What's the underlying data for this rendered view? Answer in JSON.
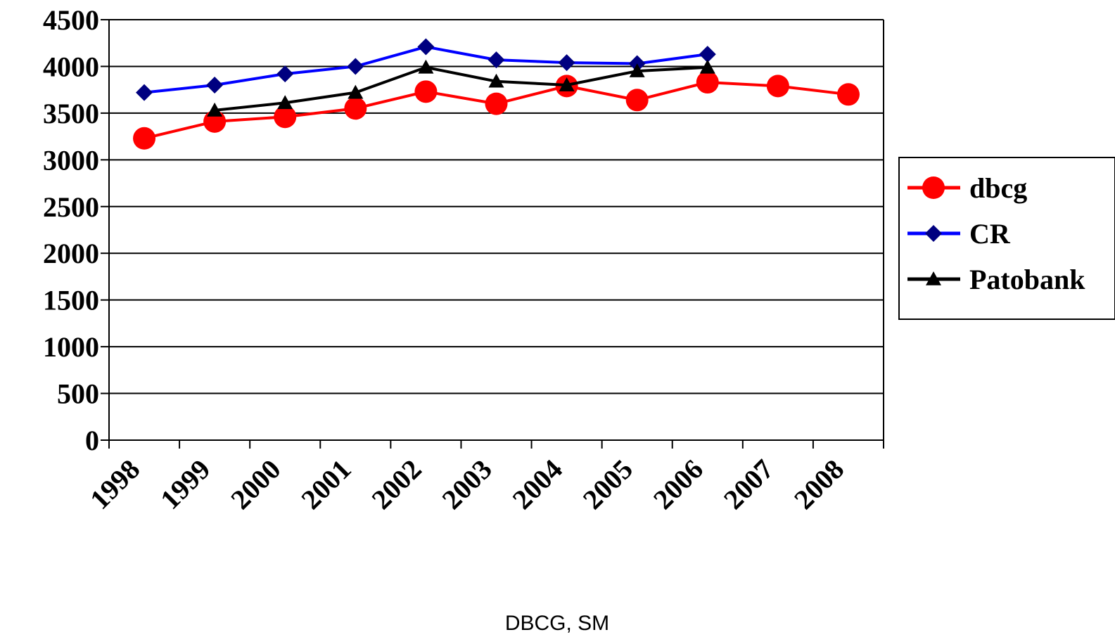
{
  "chart_data": {
    "type": "line",
    "categories": [
      "1998",
      "1999",
      "2000",
      "2001",
      "2002",
      "2003",
      "2004",
      "2005",
      "2006",
      "2007",
      "2008"
    ],
    "ylim": [
      0,
      4500
    ],
    "yticks": [
      "0",
      "500",
      "1000",
      "1500",
      "2000",
      "2500",
      "3000",
      "3500",
      "4000",
      "4500"
    ],
    "grid": true,
    "legend_position": "right",
    "series": [
      {
        "name": "dbcg",
        "color": "#ff0000",
        "marker": "circle",
        "values": [
          3230,
          3410,
          3460,
          3550,
          3730,
          3600,
          3790,
          3640,
          3830,
          3790,
          3700
        ]
      },
      {
        "name": "CR",
        "color": "#0000ff",
        "marker": "diamond",
        "values": [
          3720,
          3800,
          3920,
          4000,
          4210,
          4070,
          4040,
          4030,
          4130,
          null,
          null
        ]
      },
      {
        "name": "Patobank",
        "color": "#000000",
        "marker": "triangle",
        "values": [
          null,
          3530,
          3610,
          3720,
          3990,
          3840,
          3800,
          3950,
          3990,
          null,
          null
        ]
      }
    ]
  },
  "footer": {
    "caption": "DBCG, SM"
  }
}
